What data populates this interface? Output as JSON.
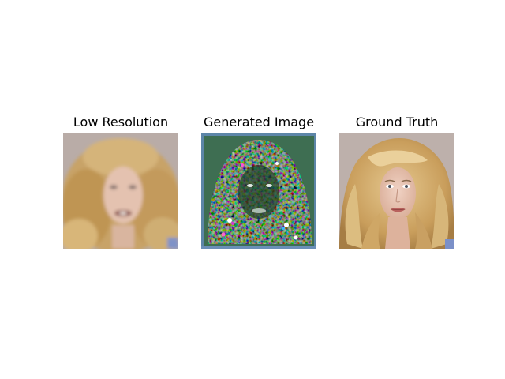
{
  "panels": [
    {
      "title": "Low Resolution",
      "image": "low-resolution-face"
    },
    {
      "title": "Generated Image",
      "image": "generated-noisy-face"
    },
    {
      "title": "Ground Truth",
      "image": "ground-truth-face"
    }
  ]
}
